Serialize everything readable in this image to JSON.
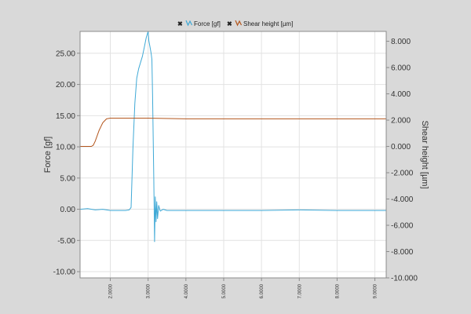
{
  "chart_data": {
    "type": "line",
    "title": "",
    "legend": {
      "placement": "top-center",
      "entries": [
        {
          "name": "Force [gf]",
          "color": "#3fa9d6"
        },
        {
          "name": "Shear height [µm]",
          "color": "#b3561d"
        }
      ]
    },
    "x_axis": {
      "label": "",
      "range": [
        1.2,
        9.3
      ],
      "ticks": [
        2.0,
        3.0,
        4.0,
        5.0,
        6.0,
        7.0,
        8.0,
        9.0
      ],
      "tick_labels": [
        "2.0000",
        "3.0000",
        "4.0000",
        "5.0000",
        "6.0000",
        "7.0000",
        "8.0000",
        "9.0000"
      ],
      "grid": true
    },
    "y_left": {
      "label": "Force [gf]",
      "range": [
        -11,
        28.5
      ],
      "ticks": [
        -10,
        -5,
        0,
        5,
        10,
        15,
        20,
        25
      ],
      "tick_labels": [
        "-10.00",
        "-5.00",
        "0.00",
        "5.00",
        "10.00",
        "15.00",
        "20.00",
        "25.00"
      ],
      "grid": true
    },
    "y_right": {
      "label": "Shear height [µm]",
      "range": [
        -10,
        8.75
      ],
      "ticks": [
        -10,
        -8,
        -6,
        -4,
        -2,
        0,
        2,
        4,
        6,
        8
      ],
      "tick_labels": [
        "-10.000",
        "-8.000",
        "-6.000",
        "-4.000",
        "-2.000",
        "0.000",
        "2.000",
        "4.000",
        "6.000",
        "8.000"
      ]
    },
    "series": [
      {
        "name": "Force [gf]",
        "axis": "left",
        "color": "#3fa9d6",
        "x": [
          1.2,
          1.4,
          1.6,
          1.8,
          2.0,
          2.2,
          2.4,
          2.5,
          2.55,
          2.6,
          2.65,
          2.7,
          2.75,
          2.8,
          2.85,
          2.9,
          2.95,
          3.0,
          3.02,
          3.05,
          3.08,
          3.1,
          3.12,
          3.15,
          3.17,
          3.19,
          3.21,
          3.23,
          3.25,
          3.28,
          3.32,
          3.4,
          3.5,
          4.0,
          5.0,
          6.0,
          7.0,
          8.0,
          9.0,
          9.3
        ],
        "y": [
          0.0,
          0.1,
          -0.1,
          0.0,
          -0.2,
          -0.2,
          -0.2,
          -0.1,
          0.3,
          10.0,
          17.0,
          21.0,
          22.5,
          23.5,
          24.5,
          26.0,
          27.5,
          28.5,
          27.0,
          26.0,
          25.0,
          24.0,
          18.0,
          5.0,
          -5.2,
          2.0,
          -2.0,
          1.2,
          -1.5,
          0.6,
          -0.3,
          0.0,
          -0.2,
          -0.2,
          -0.2,
          -0.2,
          -0.1,
          -0.2,
          -0.2,
          -0.2
        ]
      },
      {
        "name": "Shear height [µm]",
        "axis": "right",
        "color": "#b3561d",
        "x": [
          1.2,
          1.5,
          1.55,
          1.6,
          1.7,
          1.8,
          1.9,
          2.0,
          2.1,
          3.0,
          4.0,
          5.0,
          6.0,
          7.0,
          8.0,
          9.0,
          9.3
        ],
        "y": [
          0.0,
          0.0,
          0.1,
          0.4,
          1.2,
          1.8,
          2.1,
          2.15,
          2.15,
          2.15,
          2.1,
          2.1,
          2.1,
          2.1,
          2.1,
          2.1,
          2.1
        ]
      }
    ],
    "annotations": []
  }
}
